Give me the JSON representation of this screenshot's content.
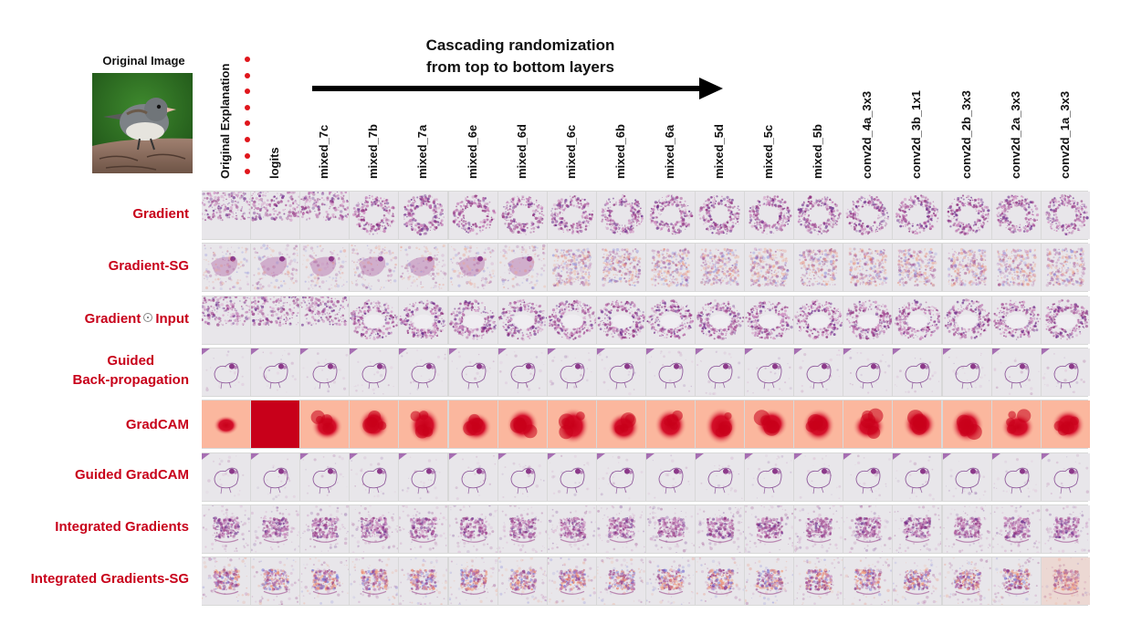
{
  "original_image": {
    "title": "Original Image",
    "description_icon": "bird-photo"
  },
  "header": {
    "arrow_title_line1": "Cascading randomization",
    "arrow_title_line2": "from top to bottom layers",
    "original_explanation_label": "Original Explanation"
  },
  "columns": [
    "logits",
    "mixed_7c",
    "mixed_7b",
    "mixed_7a",
    "mixed_6e",
    "mixed_6d",
    "mixed_6c",
    "mixed_6b",
    "mixed_6a",
    "mixed_5d",
    "mixed_5c",
    "mixed_5b",
    "conv2d_4a_3x3",
    "conv2d_3b_1x1",
    "conv2d_2b_3x3",
    "conv2d_2a_3x3",
    "conv2d_1a_3x3"
  ],
  "rows": [
    {
      "label": "Gradient",
      "style": "grad"
    },
    {
      "label": "Gradient-SG",
      "style": "gradsg"
    },
    {
      "label_part1": "Gradient",
      "label_part2": "Input",
      "operator_icon": "odot-icon",
      "style": "gradinput"
    },
    {
      "label_line1": "Guided",
      "label_line2": "Back-propagation",
      "style": "gbp"
    },
    {
      "label": "GradCAM",
      "style": "gradcam"
    },
    {
      "label": "Guided GradCAM",
      "style": "ggradcam"
    },
    {
      "label": "Integrated Gradients",
      "style": "ig"
    },
    {
      "label": "Integrated Gradients-SG",
      "style": "igsg"
    }
  ],
  "colors": {
    "row_label": "#c8001a",
    "dot": "#e0151b",
    "gradcam_dark": "#c8001a",
    "gradcam_light": "#fbb79e",
    "saliency": "#8b2a7a",
    "background_cell": "#e8e6ea"
  }
}
